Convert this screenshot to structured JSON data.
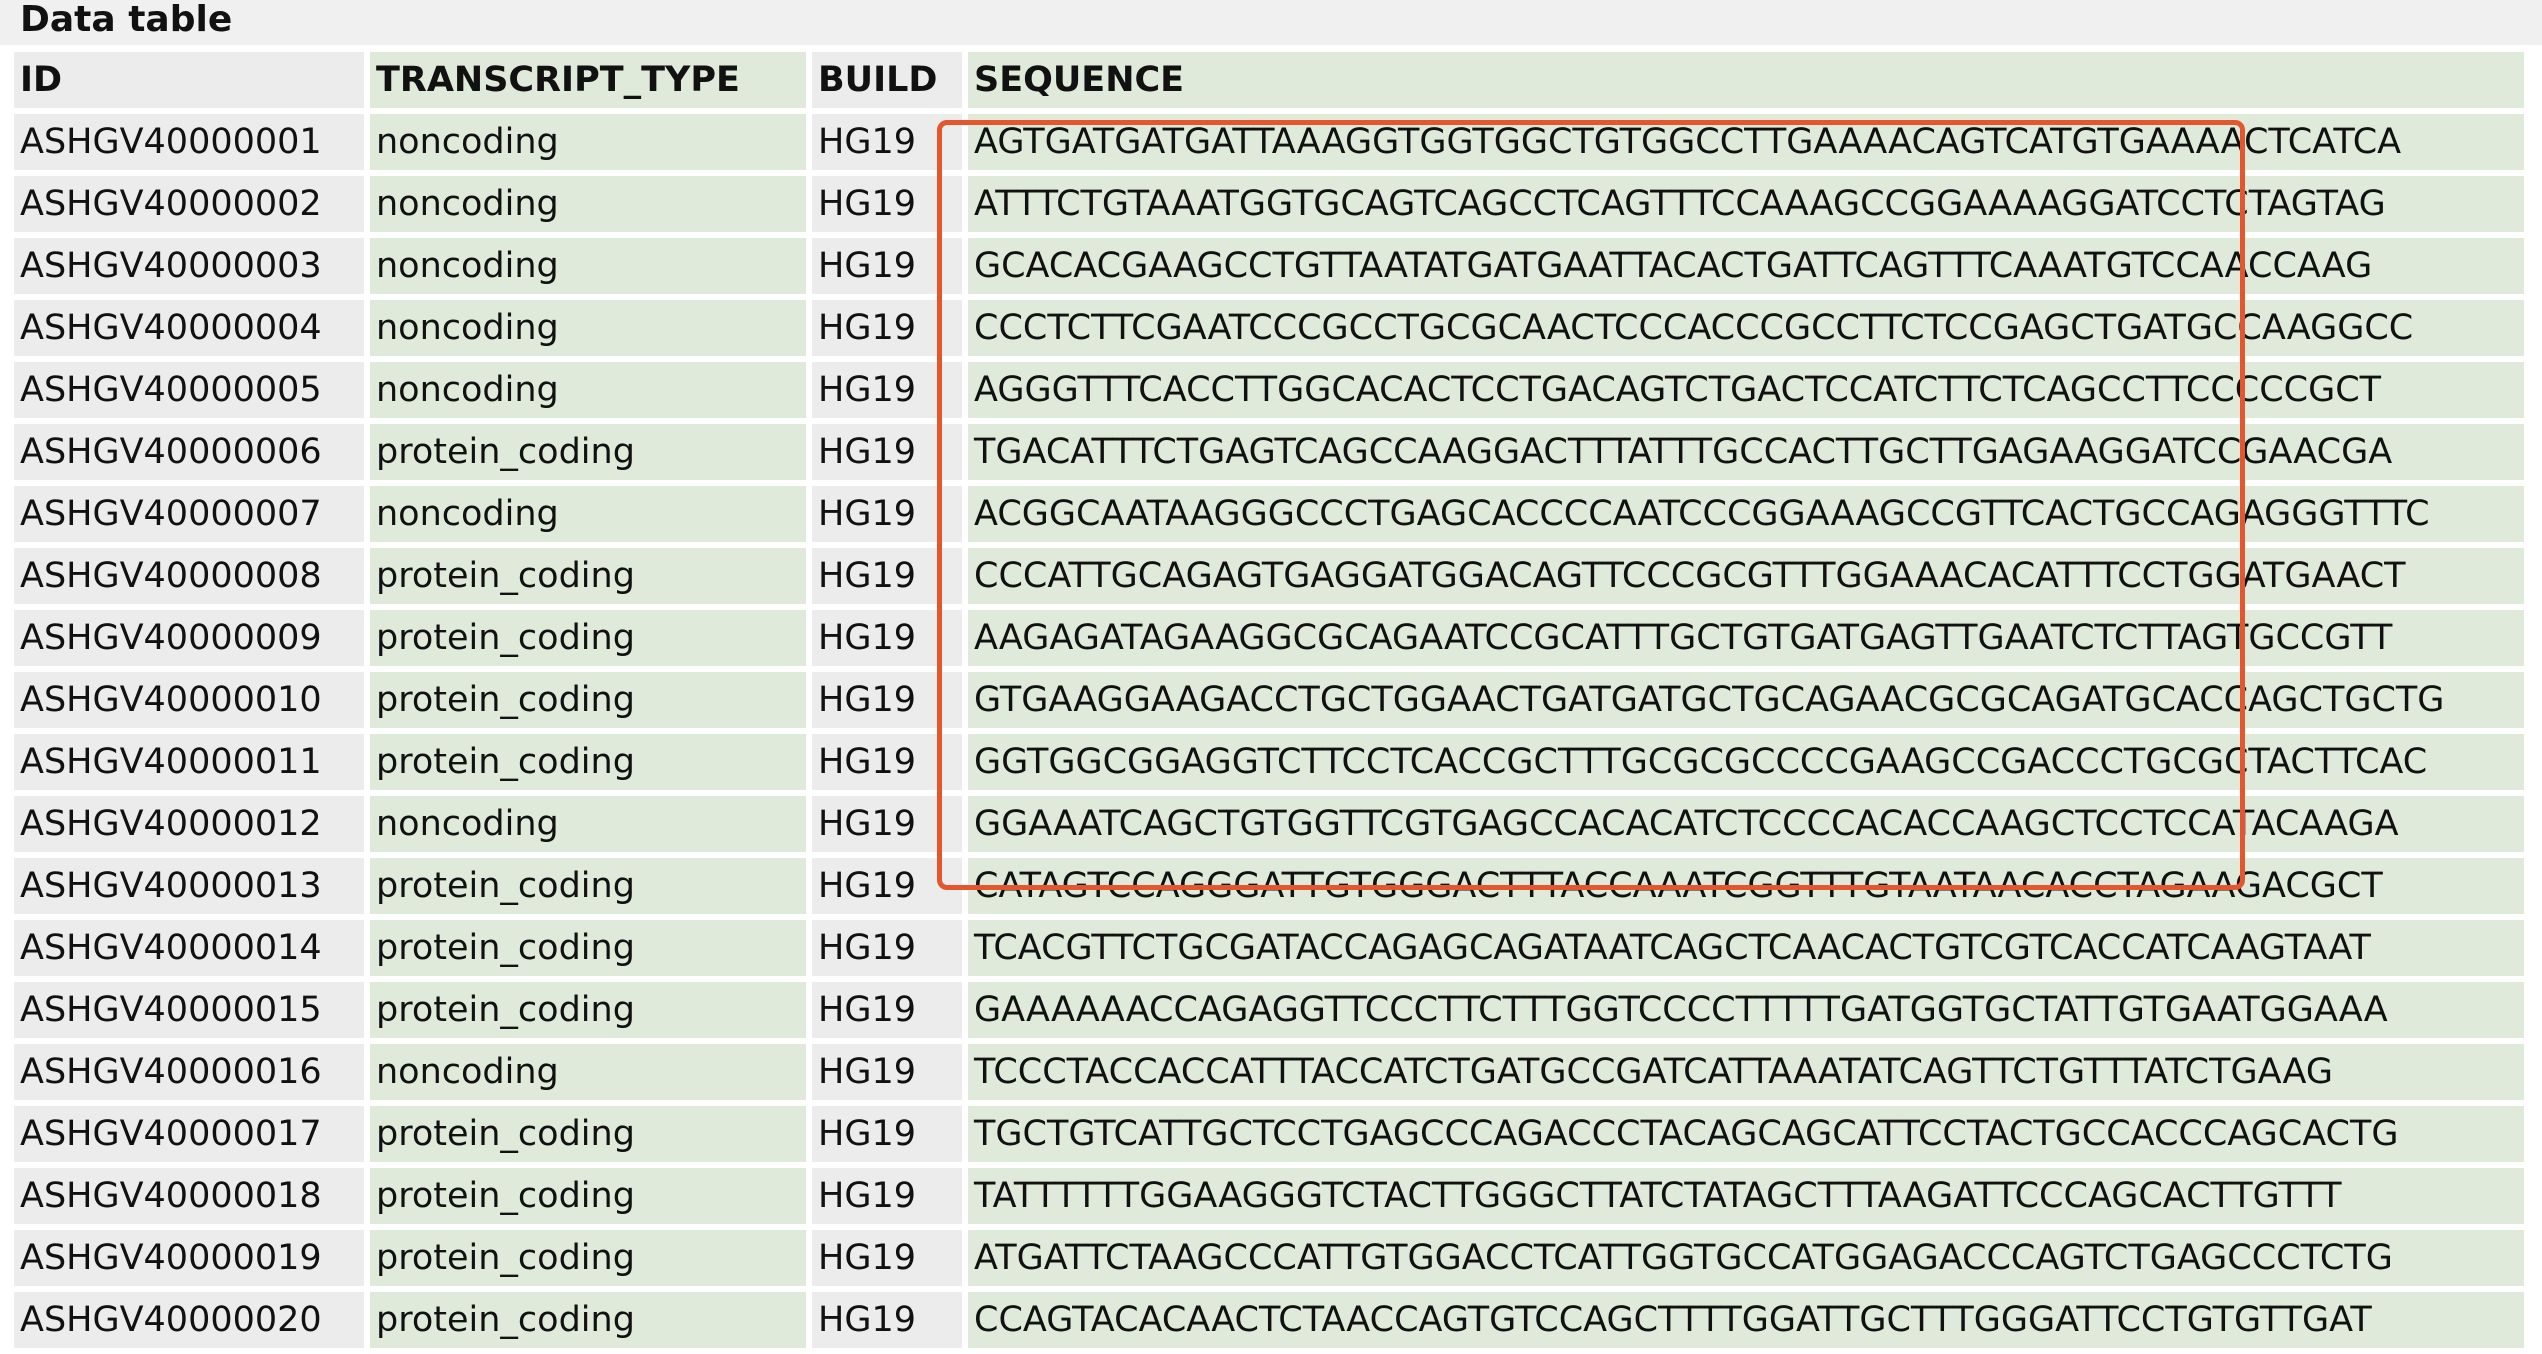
{
  "title": "Data table",
  "columns": [
    "ID",
    "TRANSCRIPT_TYPE",
    "BUILD",
    "SEQUENCE"
  ],
  "rows": [
    [
      "ASHGV40000001",
      "noncoding",
      "HG19",
      "AGTGATGATGATTAAAGGTGGTGGCTGTGGCCTTGAAAACAGTCATGTGAAAACTCATCA"
    ],
    [
      "ASHGV40000002",
      "noncoding",
      "HG19",
      "ATTTCTGTAAATGGTGCAGTCAGCCTCAGTTTCCAAAGCCGGAAAAGGATCCTCTAGTAG"
    ],
    [
      "ASHGV40000003",
      "noncoding",
      "HG19",
      "GCACACGAAGCCTGTTAATATGATGAATTACACTGATTCAGTTTCAAATGTCCAACCAAG"
    ],
    [
      "ASHGV40000004",
      "noncoding",
      "HG19",
      "CCCTCTTCGAATCCCGCCTGCGCAACTCCCACCCGCCTTCTCCGAGCTGATGCCAAGGCC"
    ],
    [
      "ASHGV40000005",
      "noncoding",
      "HG19",
      "AGGGTTTCACCTTGGCACACTCCTGACAGTCTGACTCCATCTTCTCAGCCTTCCCCCGCT"
    ],
    [
      "ASHGV40000006",
      "protein_coding",
      "HG19",
      "TGACATTTCTGAGTCAGCCAAGGACTTTATTTGCCACTTGCTTGAGAAGGATCCGAACGA"
    ],
    [
      "ASHGV40000007",
      "noncoding",
      "HG19",
      "ACGGCAATAAGGGCCCTGAGCACCCCAATCCCGGAAAGCCGTTCACTGCCAGAGGGTTTC"
    ],
    [
      "ASHGV40000008",
      "protein_coding",
      "HG19",
      "CCCATTGCAGAGTGAGGATGGACAGTTCCCGCGTTTGGAAACACATTTCCTGGATGAACT"
    ],
    [
      "ASHGV40000009",
      "protein_coding",
      "HG19",
      "AAGAGATAGAAGGCGCAGAATCCGCATTTGCTGTGATGAGTTGAATCTCTTAGTGCCGTT"
    ],
    [
      "ASHGV40000010",
      "protein_coding",
      "HG19",
      "GTGAAGGAAGACCTGCTGGAACTGATGATGCTGCAGAACGCGCAGATGCACCAGCTGCTG"
    ],
    [
      "ASHGV40000011",
      "protein_coding",
      "HG19",
      "GGTGGCGGAGGTCTTCCTCACCGCTTTGCGCGCCCCGAAGCCGACCCTGCGCTACTTCAC"
    ],
    [
      "ASHGV40000012",
      "noncoding",
      "HG19",
      "GGAAATCAGCTGTGGTTCGTGAGCCACACATCTCCCCACACCAAGCTCCTCCATACAAGA"
    ],
    [
      "ASHGV40000013",
      "protein_coding",
      "HG19",
      "CATAGTCCAGGGATTGTGGGACTTTACCAAATCGGTTTGTAATAACACCTAGAAGACGCT"
    ],
    [
      "ASHGV40000014",
      "protein_coding",
      "HG19",
      "TCACGTTCTGCGATACCAGAGCAGATAATCAGCTCAACACTGTCGTCACCATCAAGTAAT"
    ],
    [
      "ASHGV40000015",
      "protein_coding",
      "HG19",
      "GAAAAAACCAGAGGTTCCCTTCTTTGGTCCCCTTTTTGATGGTGCTATTGTGAATGGAAA"
    ],
    [
      "ASHGV40000016",
      "noncoding",
      "HG19",
      "TCCCTACCACCATTTACCATCTGATGCCGATCATTAAATATCAGTTCTGTTTATCTGAAG"
    ],
    [
      "ASHGV40000017",
      "protein_coding",
      "HG19",
      "TGCTGTCATTGCTCCTGAGCCCAGACCCTACAGCAGCATTCCTACTGCCACCCAGCACTG"
    ],
    [
      "ASHGV40000018",
      "protein_coding",
      "HG19",
      "TATTTTTTGGAAGGGTCTACTTGGGCTTATCTATAGCTTTAAGATTCCCAGCACTTGTTT"
    ],
    [
      "ASHGV40000019",
      "protein_coding",
      "HG19",
      "ATGATTCTAAGCCCATTGTGGACCTCATTGGTGCCATGGAGACCCAGTCTGAGCCCTCTG"
    ],
    [
      "ASHGV40000020",
      "protein_coding",
      "HG19",
      "CCAGTACACAACTCTAACCAGTGTCCAGCTTTTGGATTGCTTTGGGATTCCTGTGTTGAT"
    ]
  ],
  "colors": {
    "gray_cell": "#ececec",
    "green_cell": "#dfeadb",
    "highlight_border": "#e4572e"
  }
}
